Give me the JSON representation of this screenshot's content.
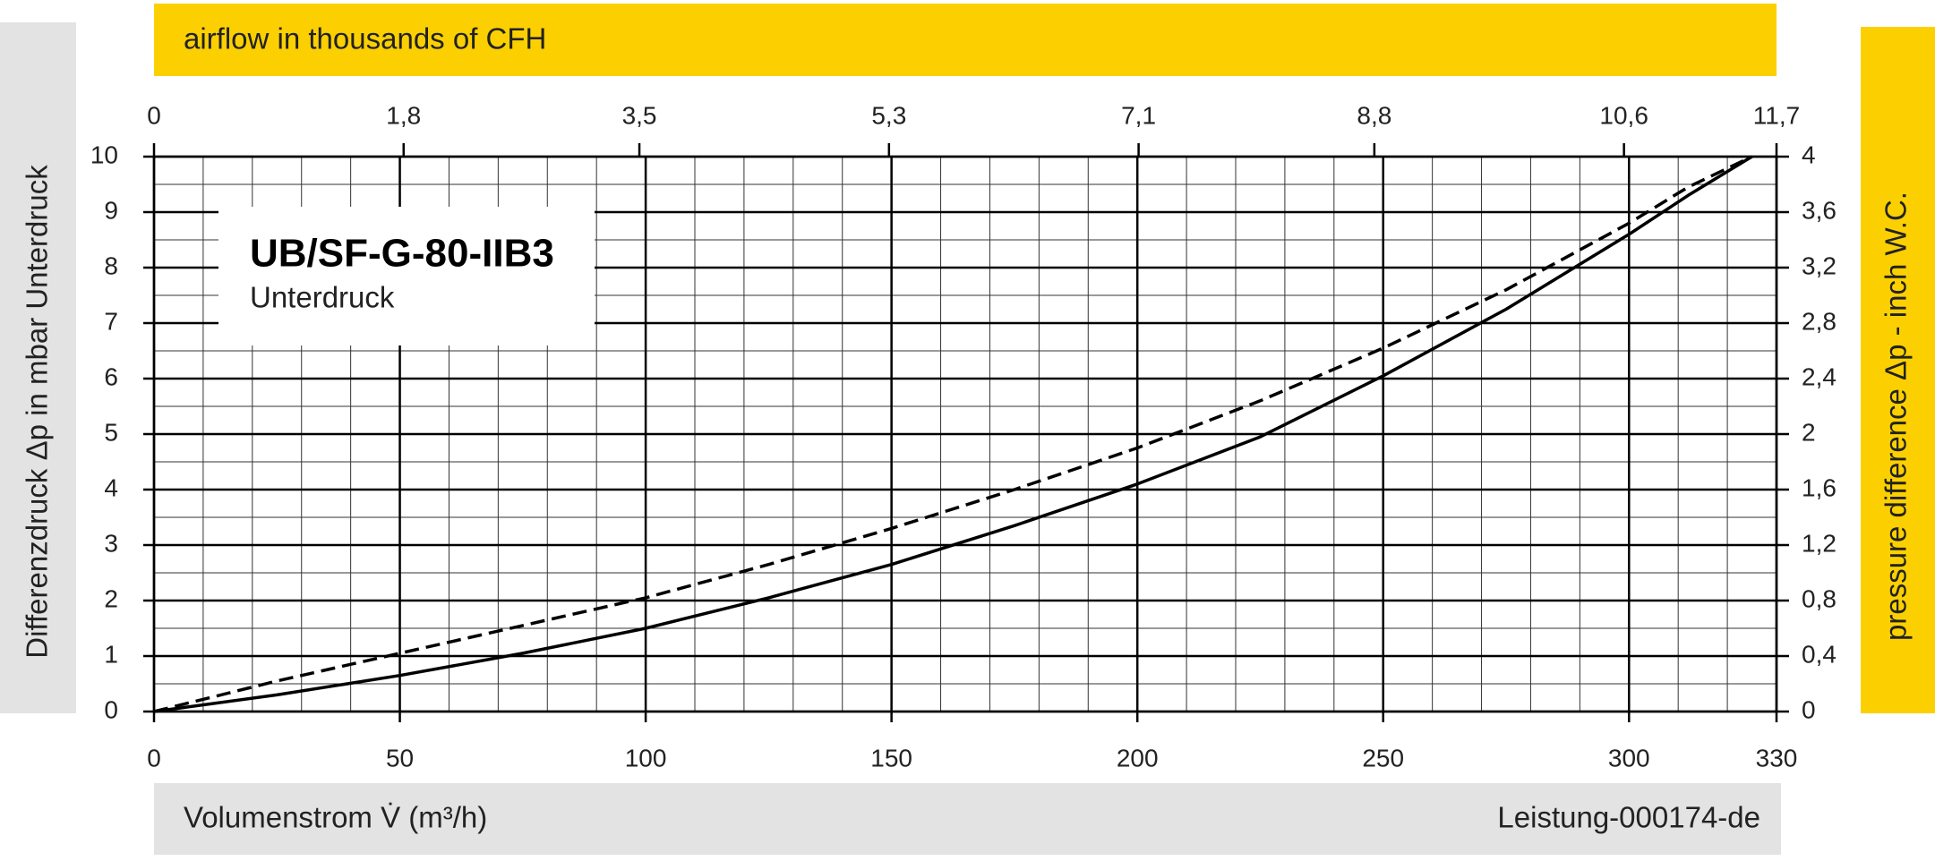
{
  "chart_data": {
    "type": "line",
    "banner": "airflow in thousands of CFH",
    "ylabel": "Differenzdruck Δp in mbar Unterdruck",
    "y2label": "pressure difference Δp  - inch W.C.",
    "xlabel": "Volumenstrom V̇ (m³/h)",
    "footer": "Leistung-000174-de",
    "box_title": "UB/SF-G-80-IIB3",
    "box_subtitle": "Unterdruck",
    "x": [
      0,
      25,
      50,
      75,
      100,
      125,
      150,
      175,
      200,
      225,
      250,
      275,
      300,
      312,
      325
    ],
    "series": [
      {
        "color": "#000000",
        "style": "solid",
        "values": [
          0,
          0.3,
          0.65,
          1.05,
          1.5,
          2.05,
          2.65,
          3.35,
          4.1,
          4.95,
          6.05,
          7.25,
          8.6,
          9.3,
          10
        ]
      },
      {
        "color": "#000000",
        "style": "dashed",
        "values": [
          0,
          0.55,
          1.05,
          1.55,
          2.05,
          2.65,
          3.3,
          4.0,
          4.75,
          5.6,
          6.55,
          7.6,
          8.8,
          9.45,
          10
        ]
      }
    ],
    "xlim": [
      0,
      330
    ],
    "xticks": [
      0,
      50,
      100,
      150,
      200,
      250,
      300,
      330
    ],
    "x2lim": [
      0,
      11.7
    ],
    "x2ticks": [
      0,
      {
        "value": 1.8,
        "label": "1,8"
      },
      {
        "value": 3.5,
        "label": "3,5"
      },
      {
        "value": 5.3,
        "label": "5,3"
      },
      {
        "value": 7.1,
        "label": "7,1"
      },
      {
        "value": 8.8,
        "label": "8,8"
      },
      {
        "value": 10.6,
        "label": "10,6"
      },
      {
        "value": 11.7,
        "label": "11,7"
      }
    ],
    "ylim": [
      0,
      10
    ],
    "yticks": [
      0,
      1,
      2,
      3,
      4,
      5,
      6,
      7,
      8,
      9,
      10
    ],
    "y2lim": [
      0,
      4
    ],
    "y2ticks": [
      0,
      {
        "value": 0.4,
        "label": "0,4"
      },
      {
        "value": 0.8,
        "label": "0,8"
      },
      {
        "value": 1.2,
        "label": "1,2"
      },
      {
        "value": 1.6,
        "label": "1,6"
      },
      2,
      {
        "value": 2.4,
        "label": "2,4"
      },
      {
        "value": 2.8,
        "label": "2,8"
      },
      {
        "value": 3.2,
        "label": "3,2"
      },
      {
        "value": 3.6,
        "label": "3,6"
      },
      4
    ],
    "grid": true
  }
}
